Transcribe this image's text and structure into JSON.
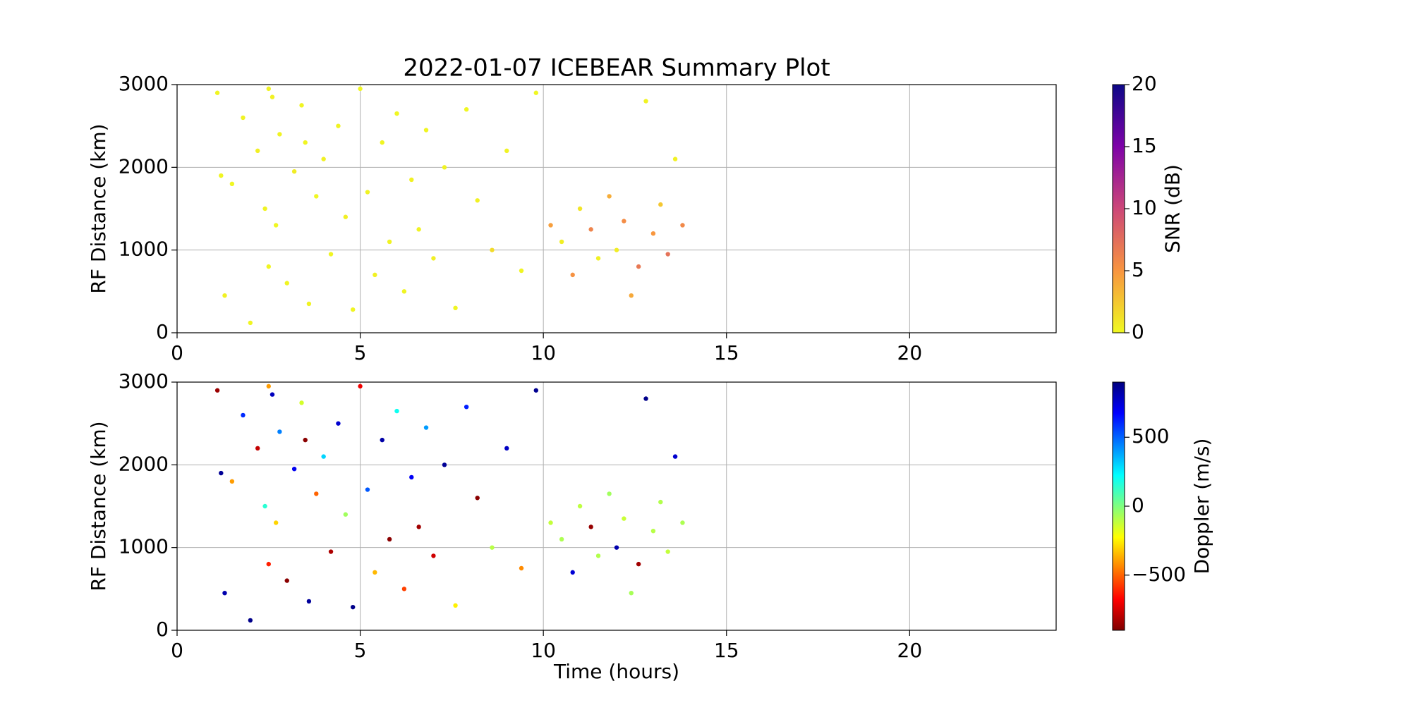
{
  "chart_data": [
    {
      "type": "scatter",
      "title": "2022-01-07 ICEBEAR Summary Plot",
      "ylabel": "RF Distance (km)",
      "xlim": [
        0,
        24
      ],
      "ylim": [
        0,
        3000
      ],
      "xticks": [
        0,
        5,
        10,
        15,
        20
      ],
      "yticks": [
        0,
        1000,
        2000,
        3000
      ],
      "grid": true,
      "x": [
        1.1,
        1.3,
        1.5,
        1.8,
        2.0,
        2.2,
        2.4,
        2.5,
        2.6,
        2.7,
        2.8,
        3.0,
        3.2,
        3.4,
        3.6,
        3.8,
        4.0,
        4.2,
        4.4,
        4.6,
        4.8,
        5.0,
        5.2,
        5.4,
        5.6,
        5.8,
        6.0,
        6.2,
        6.4,
        6.6,
        6.8,
        7.0,
        7.3,
        7.6,
        7.9,
        8.2,
        8.6,
        9.0,
        9.4,
        9.8,
        10.2,
        10.5,
        10.8,
        11.0,
        11.3,
        11.5,
        11.8,
        12.0,
        12.2,
        12.4,
        12.6,
        12.8,
        13.0,
        13.2,
        13.4,
        13.6,
        13.8,
        1.2,
        2.5,
        3.5
      ],
      "y": [
        2900,
        450,
        1800,
        2600,
        120,
        2200,
        1500,
        800,
        2850,
        1300,
        2400,
        600,
        1950,
        2750,
        350,
        1650,
        2100,
        950,
        2500,
        1400,
        280,
        2950,
        1700,
        700,
        2300,
        1100,
        2650,
        500,
        1850,
        1250,
        2450,
        900,
        2000,
        300,
        2700,
        1600,
        1000,
        2200,
        750,
        2900,
        1300,
        1100,
        700,
        1500,
        1250,
        900,
        1650,
        1000,
        1350,
        450,
        800,
        2800,
        1200,
        1550,
        950,
        2100,
        1300,
        1900,
        2950,
        2300
      ],
      "c": [
        0.2,
        0.4,
        0.1,
        0.3,
        0.2,
        0.5,
        0.3,
        0.2,
        0.4,
        0.1,
        0.3,
        0.2,
        0.6,
        0.2,
        0.3,
        0.1,
        0.4,
        0.2,
        0.3,
        0.5,
        0.2,
        0.1,
        0.3,
        0.4,
        0.2,
        0.3,
        0.1,
        0.2,
        0.4,
        0.3,
        0.2,
        0.5,
        0.3,
        0.2,
        0.1,
        0.4,
        1.5,
        0.3,
        0.2,
        0.1,
        4.5,
        0.5,
        5.2,
        1.0,
        6.1,
        0.4,
        3.8,
        0.6,
        5.5,
        4.0,
        6.8,
        0.3,
        4.9,
        2.5,
        7.2,
        0.4,
        5.8,
        0.2,
        0.3,
        0.2
      ],
      "colorbar": {
        "label": "SNR (dB)",
        "colormap": "plasma_r",
        "lim": [
          0,
          20
        ],
        "ticks": [
          0,
          5,
          10,
          15,
          20
        ]
      }
    },
    {
      "type": "scatter",
      "xlabel": "Time (hours)",
      "ylabel": "RF Distance (km)",
      "xlim": [
        0,
        24
      ],
      "ylim": [
        0,
        3000
      ],
      "xticks": [
        0,
        5,
        10,
        15,
        20
      ],
      "yticks": [
        0,
        1000,
        2000,
        3000
      ],
      "grid": true,
      "x": [
        1.1,
        1.3,
        1.5,
        1.8,
        2.0,
        2.2,
        2.4,
        2.5,
        2.6,
        2.7,
        2.8,
        3.0,
        3.2,
        3.4,
        3.6,
        3.8,
        4.0,
        4.2,
        4.4,
        4.6,
        4.8,
        5.0,
        5.2,
        5.4,
        5.6,
        5.8,
        6.0,
        6.2,
        6.4,
        6.6,
        6.8,
        7.0,
        7.3,
        7.6,
        7.9,
        8.2,
        8.6,
        9.0,
        9.4,
        9.8,
        10.2,
        10.5,
        10.8,
        11.0,
        11.3,
        11.5,
        11.8,
        12.0,
        12.2,
        12.4,
        12.6,
        12.8,
        13.0,
        13.2,
        13.4,
        13.6,
        13.8,
        1.2,
        2.5,
        3.5
      ],
      "y": [
        2900,
        450,
        1800,
        2600,
        120,
        2200,
        1500,
        800,
        2850,
        1300,
        2400,
        600,
        1950,
        2750,
        350,
        1650,
        2100,
        950,
        2500,
        1400,
        280,
        2950,
        1700,
        700,
        2300,
        1100,
        2650,
        500,
        1850,
        1250,
        2450,
        900,
        2000,
        300,
        2700,
        1600,
        1000,
        2200,
        750,
        2900,
        1300,
        1100,
        700,
        1500,
        1250,
        900,
        1650,
        1000,
        1350,
        450,
        800,
        2800,
        1200,
        1550,
        950,
        2100,
        1300,
        1900,
        2950,
        2300
      ],
      "c": [
        -850,
        820,
        -400,
        600,
        880,
        -780,
        150,
        -620,
        790,
        -300,
        450,
        -880,
        700,
        -150,
        850,
        -500,
        300,
        -820,
        760,
        -60,
        880,
        -700,
        520,
        -350,
        830,
        -880,
        200,
        -560,
        690,
        -840,
        400,
        -760,
        860,
        -250,
        620,
        -880,
        -100,
        780,
        -430,
        870,
        -120,
        -80,
        750,
        -110,
        -860,
        -90,
        -60,
        820,
        -130,
        -70,
        -840,
        880,
        -100,
        -90,
        -120,
        760,
        -80,
        860,
        -400,
        -880
      ],
      "colorbar": {
        "label": "Doppler (m/s)",
        "colormap": "jet_r",
        "lim": [
          -900,
          900
        ],
        "ticks": [
          {
            "value": -500,
            "label": "−500"
          },
          0,
          500
        ]
      }
    }
  ]
}
